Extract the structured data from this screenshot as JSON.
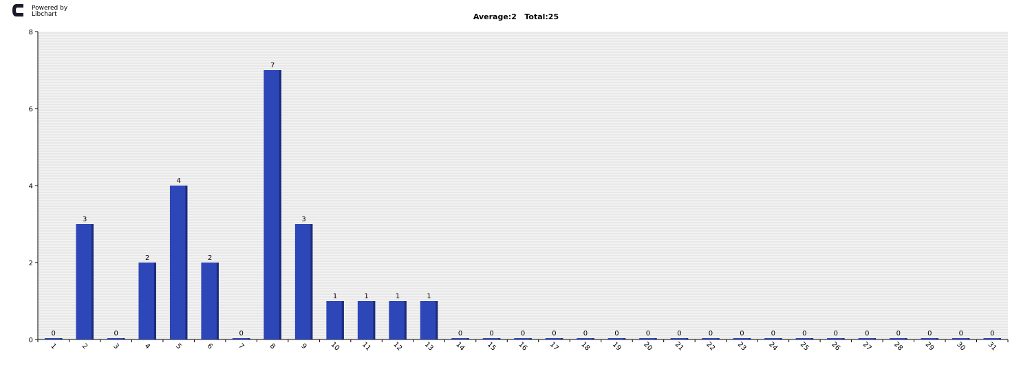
{
  "branding": {
    "line1": "Powered by",
    "line2": "Libchart"
  },
  "chart_data": {
    "type": "bar",
    "title": "Average:2   Total:25",
    "xlabel": "",
    "ylabel": "",
    "categories": [
      "1",
      "2",
      "3",
      "4",
      "5",
      "6",
      "7",
      "8",
      "9",
      "10",
      "11",
      "12",
      "13",
      "14",
      "15",
      "16",
      "17",
      "18",
      "19",
      "20",
      "21",
      "22",
      "23",
      "24",
      "25",
      "26",
      "27",
      "28",
      "29",
      "30",
      "31"
    ],
    "values": [
      0,
      3,
      0,
      2,
      4,
      2,
      0,
      7,
      3,
      1,
      1,
      1,
      1,
      0,
      0,
      0,
      0,
      0,
      0,
      0,
      0,
      0,
      0,
      0,
      0,
      0,
      0,
      0,
      0,
      0,
      0
    ],
    "ylim": [
      0,
      8
    ],
    "yticks": [
      "0",
      "2",
      "4",
      "6",
      "8"
    ],
    "grid": true,
    "legend": "none",
    "colors": {
      "bar": "#2d46b8",
      "bar_shade": "#1c2c78",
      "plot_bg": "#f2f2f2",
      "grid": "#dddddd",
      "axis": "#000000"
    }
  }
}
